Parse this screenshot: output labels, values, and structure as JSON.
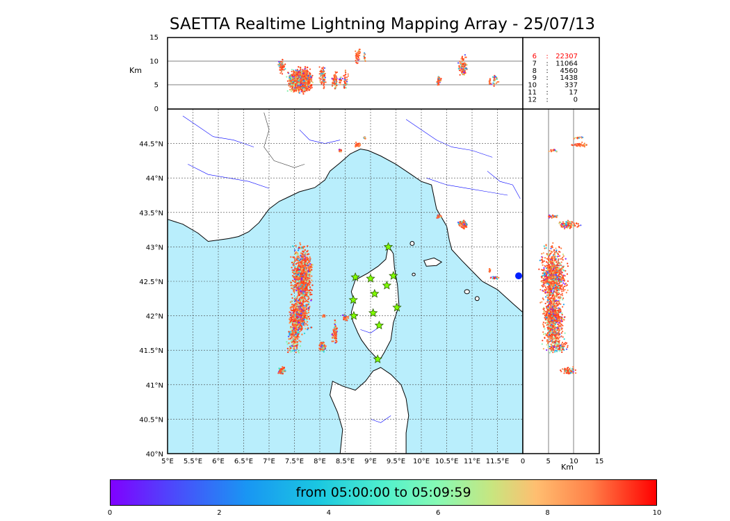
{
  "title": "SAETTA Realtime Lightning Mapping Array - 25/07/13",
  "altitude_panel": {
    "ylabel": "Km",
    "yticks": [
      "0",
      "5",
      "10",
      "15"
    ],
    "yrange_km": [
      0,
      15
    ]
  },
  "station_table": [
    {
      "n": "6",
      "count": "22307",
      "color": "#ff0000"
    },
    {
      "n": "7",
      "count": "11064",
      "color": "#000000"
    },
    {
      "n": "8",
      "count": "4560",
      "color": "#000000"
    },
    {
      "n": "9",
      "count": "1438",
      "color": "#000000"
    },
    {
      "n": "10",
      "count": "337",
      "color": "#000000"
    },
    {
      "n": "11",
      "count": "17",
      "color": "#000000"
    },
    {
      "n": "12",
      "count": "0",
      "color": "#000000"
    }
  ],
  "map": {
    "lon_range": [
      5,
      12
    ],
    "lat_range": [
      40,
      45
    ],
    "xticks": [
      "5°E",
      "5.5°E",
      "6°E",
      "6.5°E",
      "7°E",
      "7.5°E",
      "8°E",
      "8.5°E",
      "9°E",
      "9.5°E",
      "10°E",
      "10.5°E",
      "11°E",
      "11.5°E"
    ],
    "yticks": [
      "40°N",
      "40.5°N",
      "41°N",
      "41.5°N",
      "42°N",
      "42.5°N",
      "43°N",
      "43.5°N",
      "44°N",
      "44.5°N"
    ],
    "grid": true,
    "sea_color": "#b9eefc",
    "land_color": "#ffffff",
    "coast_color": "#000000",
    "river_color": "#0000ff",
    "stations": [
      {
        "lon": 9.35,
        "lat": 43.0
      },
      {
        "lon": 8.7,
        "lat": 42.56
      },
      {
        "lon": 9.0,
        "lat": 42.54
      },
      {
        "lon": 9.45,
        "lat": 42.58
      },
      {
        "lon": 9.32,
        "lat": 42.44
      },
      {
        "lon": 9.08,
        "lat": 42.32
      },
      {
        "lon": 8.66,
        "lat": 42.23
      },
      {
        "lon": 9.52,
        "lat": 42.12
      },
      {
        "lon": 8.67,
        "lat": 42.0
      },
      {
        "lon": 9.05,
        "lat": 42.04
      },
      {
        "lon": 9.17,
        "lat": 41.86
      },
      {
        "lon": 9.14,
        "lat": 41.37
      }
    ]
  },
  "side_panel": {
    "xlabel": "Km",
    "xticks": [
      "0",
      "5",
      "10",
      "15"
    ],
    "xrange_km": [
      0,
      15
    ]
  },
  "colorbar": {
    "label": "from 05:00:00 to 05:09:59",
    "ticks": [
      "0",
      "2",
      "4",
      "6",
      "8",
      "10"
    ],
    "range": [
      0,
      10
    ]
  }
}
